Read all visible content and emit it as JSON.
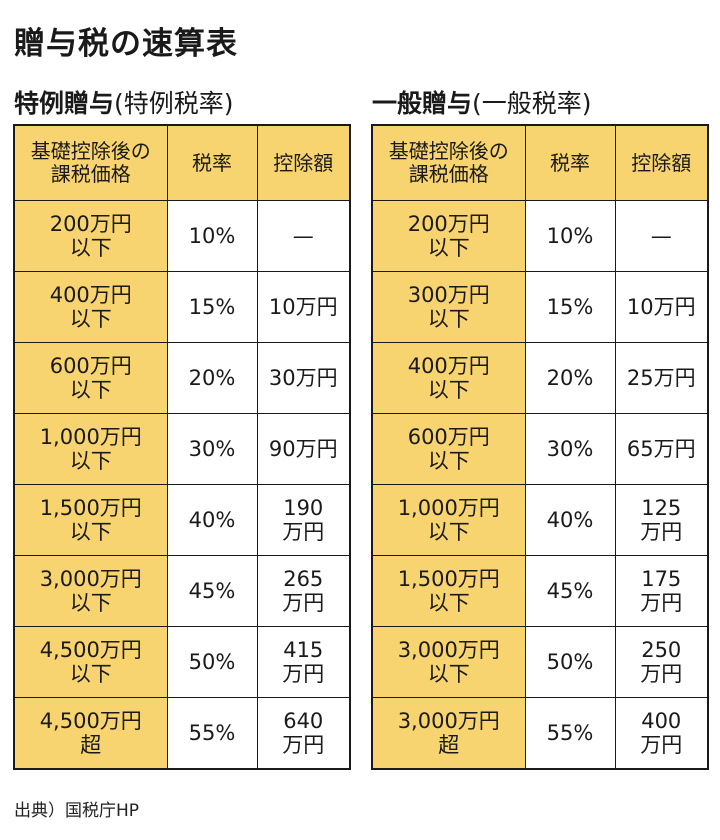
{
  "title": "贈与税の速算表",
  "tokurei": {
    "label": "特例贈与",
    "sublabel": "(特例税率)",
    "headers": {
      "bracket": "基礎控除後の\n課税価格",
      "rate": "税率",
      "deduction": "控除額"
    },
    "rows": [
      {
        "bracket": "200万円\n以下",
        "rate": "10%",
        "deduction": "—"
      },
      {
        "bracket": "400万円\n以下",
        "rate": "15%",
        "deduction": "10万円"
      },
      {
        "bracket": "600万円\n以下",
        "rate": "20%",
        "deduction": "30万円"
      },
      {
        "bracket": "1,000万円\n以下",
        "rate": "30%",
        "deduction": "90万円"
      },
      {
        "bracket": "1,500万円\n以下",
        "rate": "40%",
        "deduction": "190\n万円"
      },
      {
        "bracket": "3,000万円\n以下",
        "rate": "45%",
        "deduction": "265\n万円"
      },
      {
        "bracket": "4,500万円\n以下",
        "rate": "50%",
        "deduction": "415\n万円"
      },
      {
        "bracket": "4,500万円\n超",
        "rate": "55%",
        "deduction": "640\n万円"
      }
    ]
  },
  "ippan": {
    "label": "一般贈与",
    "sublabel": "(一般税率)",
    "headers": {
      "bracket": "基礎控除後の\n課税価格",
      "rate": "税率",
      "deduction": "控除額"
    },
    "rows": [
      {
        "bracket": "200万円\n以下",
        "rate": "10%",
        "deduction": "—"
      },
      {
        "bracket": "300万円\n以下",
        "rate": "15%",
        "deduction": "10万円"
      },
      {
        "bracket": "400万円\n以下",
        "rate": "20%",
        "deduction": "25万円"
      },
      {
        "bracket": "600万円\n以下",
        "rate": "30%",
        "deduction": "65万円"
      },
      {
        "bracket": "1,000万円\n以下",
        "rate": "40%",
        "deduction": "125\n万円"
      },
      {
        "bracket": "1,500万円\n以下",
        "rate": "45%",
        "deduction": "175\n万円"
      },
      {
        "bracket": "3,000万円\n以下",
        "rate": "50%",
        "deduction": "250\n万円"
      },
      {
        "bracket": "3,000万円\n超",
        "rate": "55%",
        "deduction": "400\n万円"
      }
    ]
  },
  "source": "出典）国税庁HP",
  "colors": {
    "header_fill": "#f7d470",
    "bracket_fill": "#f7d470",
    "border": "#1a1a1a"
  }
}
